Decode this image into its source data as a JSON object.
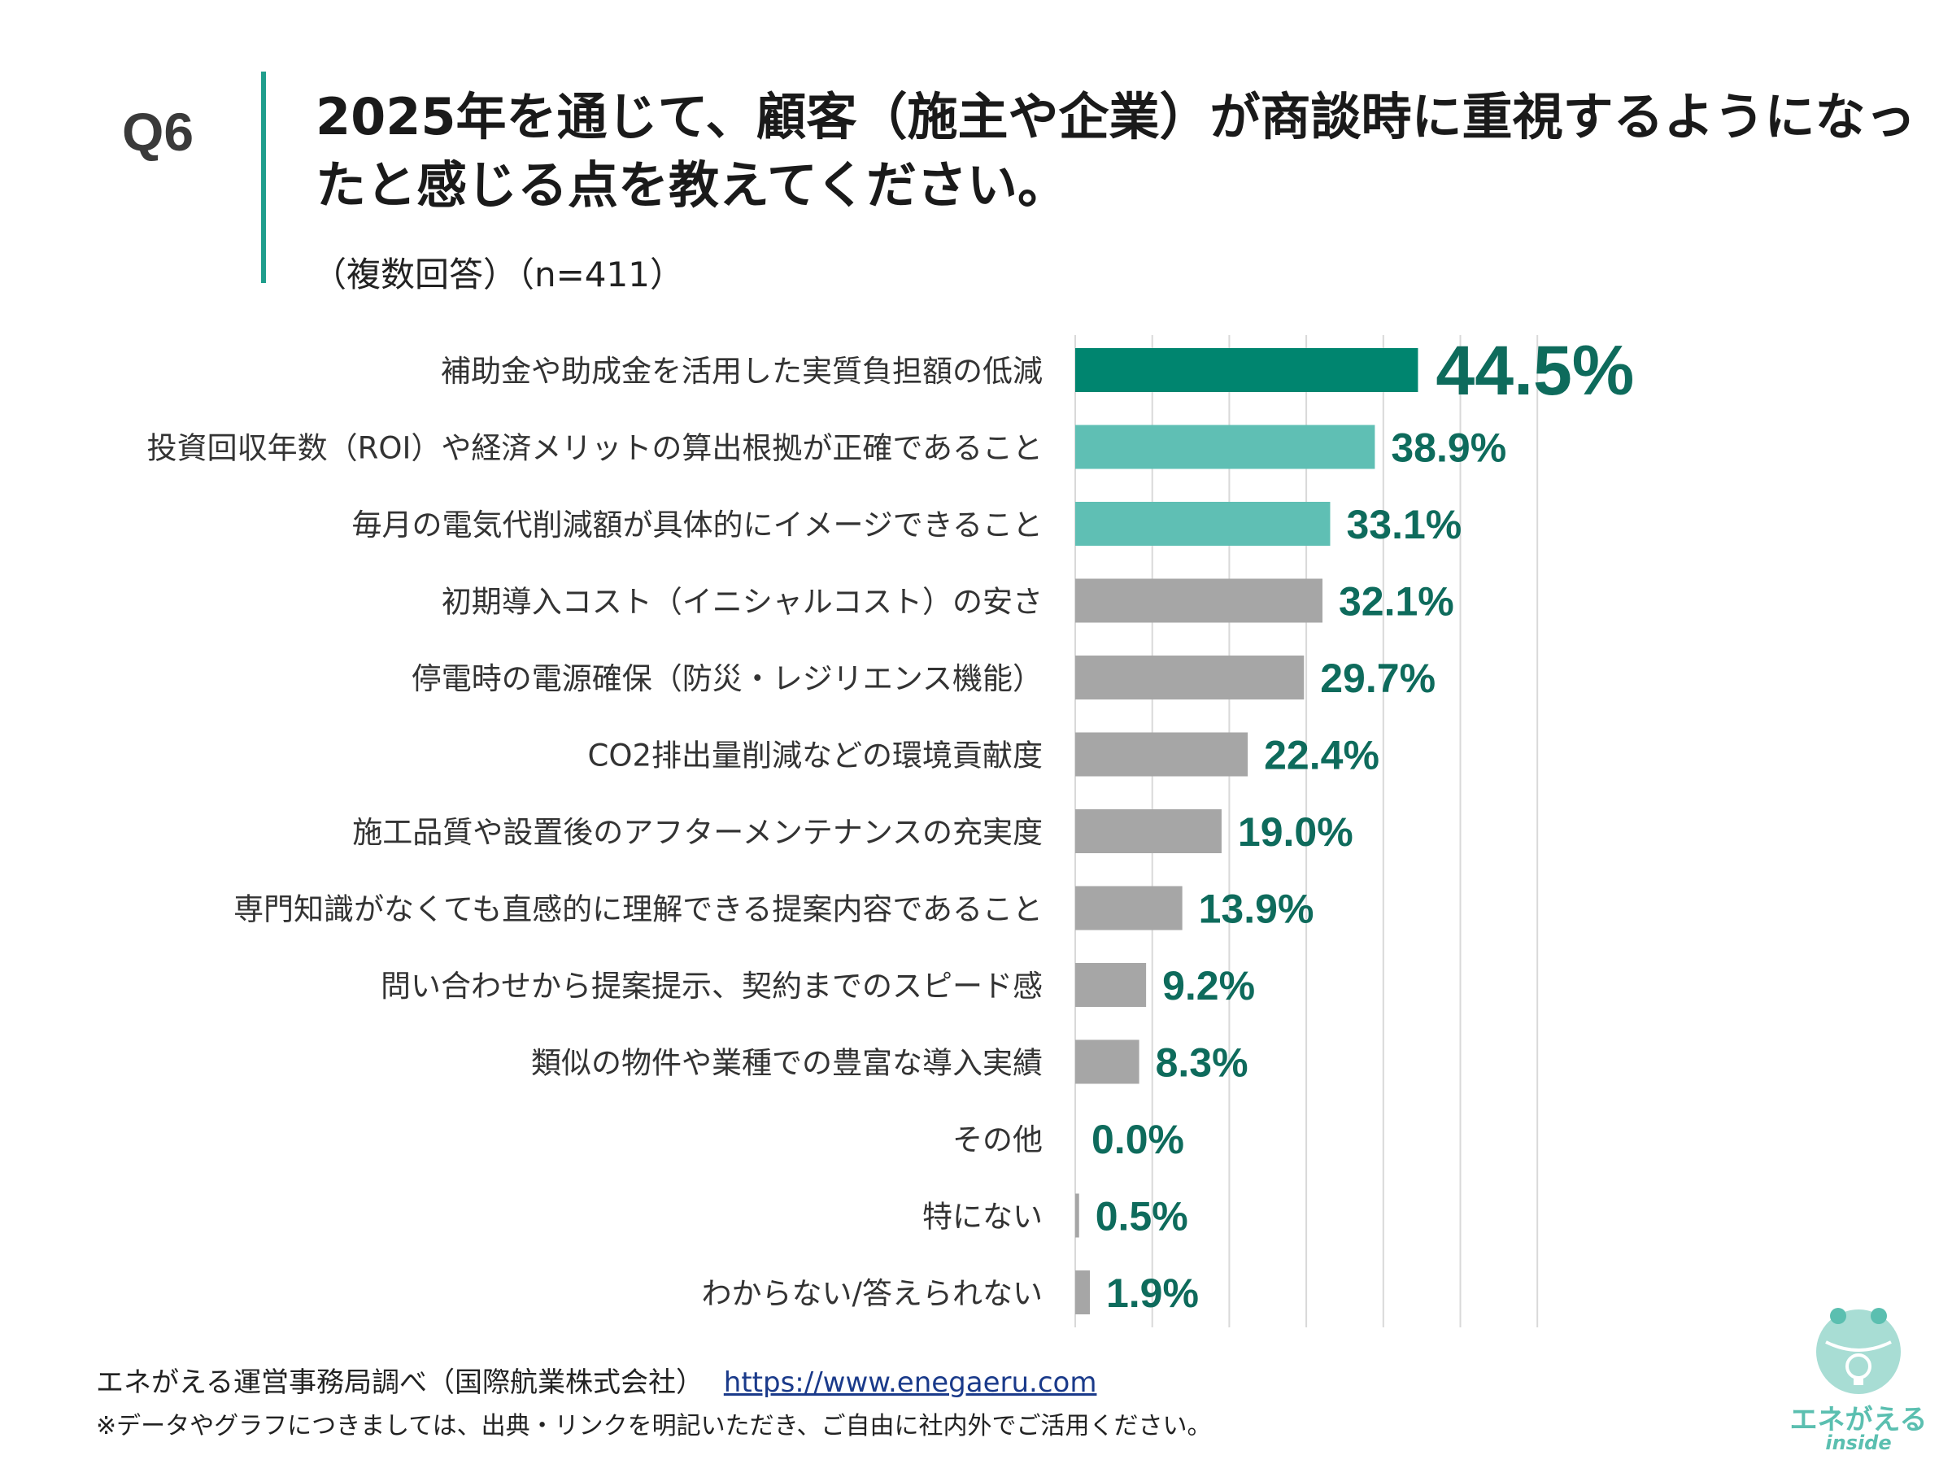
{
  "question_label": "Q6",
  "title": "2025年を通じて、顧客（施主や企業）が商談時に重視するようになったと感じる点を教えてください。",
  "subtitle": "（複数回答）（n=411）",
  "chart_data": {
    "type": "bar",
    "orientation": "horizontal",
    "categories": [
      "補助金や助成金を活用した実質負担額の低減",
      "投資回収年数（ROI）や経済メリットの算出根拠が正確であること",
      "毎月の電気代削減額が具体的にイメージできること",
      "初期導入コスト（イニシャルコスト）の安さ",
      "停電時の電源確保（防災・レジリエンス機能）",
      "CO2排出量削減などの環境貢献度",
      "施工品質や設置後のアフターメンテナンスの充実度",
      "専門知識がなくても直感的に理解できる提案内容であること",
      "問い合わせから提案提示、契約までのスピード感",
      "類似の物件や業種での豊富な導入実績",
      "その他",
      "特にない",
      "わからない/答えられない"
    ],
    "values": [
      44.5,
      38.9,
      33.1,
      32.1,
      29.7,
      22.4,
      19.0,
      13.9,
      9.2,
      8.3,
      0.0,
      0.5,
      1.9
    ],
    "labels": [
      "44.5%",
      "38.9%",
      "33.1%",
      "32.1%",
      "29.7%",
      "22.4%",
      "19.0%",
      "13.9%",
      "9.2%",
      "8.3%",
      "0.0%",
      "0.5%",
      "1.9%"
    ],
    "bar_colors": [
      "#00856f",
      "#5fbfb4",
      "#5fbfb4",
      "#a6a6a6",
      "#a6a6a6",
      "#a6a6a6",
      "#a6a6a6",
      "#a6a6a6",
      "#a6a6a6",
      "#a6a6a6",
      "#a6a6a6",
      "#a6a6a6",
      "#a6a6a6"
    ],
    "label_color": "#0e6b5c",
    "xlim": [
      0,
      60
    ],
    "grid": true
  },
  "footer": {
    "source": "エネがえる運営事務局調べ（国際航業株式会社）",
    "url": "https://www.enegaeru.com",
    "note": "※データやグラフにつきましては、出典・リンクを明記いただき、ご自由に社内外でご活用ください。"
  },
  "logo": {
    "name": "エネがえる",
    "sub": "inside"
  },
  "colors": {
    "accent": "#1f9e8c",
    "grid": "#d9d9d9",
    "logo": "#5bbfb0"
  }
}
